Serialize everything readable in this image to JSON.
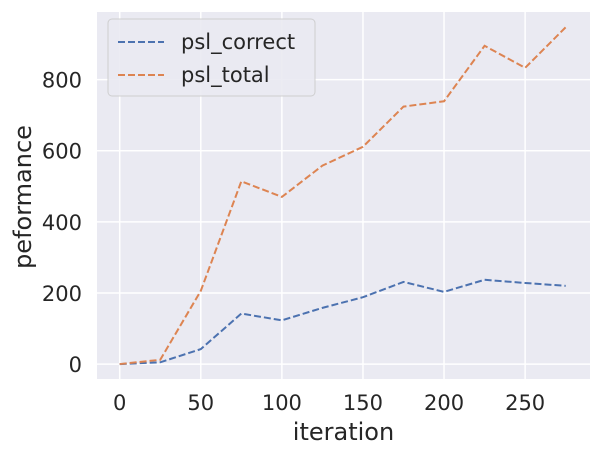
{
  "chart_data": {
    "type": "line",
    "title": "",
    "xlabel": "iteration",
    "ylabel": "peformance",
    "xlim": [
      -14,
      290
    ],
    "ylim": [
      -42,
      990
    ],
    "x_ticks": [
      0,
      50,
      100,
      150,
      200,
      250
    ],
    "y_ticks": [
      0,
      200,
      400,
      600,
      800
    ],
    "grid": true,
    "legend_position": "top-left",
    "x": [
      0,
      25,
      50,
      75,
      100,
      125,
      150,
      175,
      200,
      225,
      250,
      275
    ],
    "series": [
      {
        "name": "psl_correct",
        "color": "#4c72b0",
        "line_style": "dashed",
        "values": [
          0,
          5,
          42,
          142,
          123,
          158,
          188,
          231,
          203,
          237,
          228,
          220
        ]
      },
      {
        "name": "psl_total",
        "color": "#dd8452",
        "line_style": "dashed",
        "values": [
          0,
          12,
          206,
          514,
          470,
          558,
          611,
          724,
          739,
          895,
          833,
          947
        ]
      }
    ]
  }
}
